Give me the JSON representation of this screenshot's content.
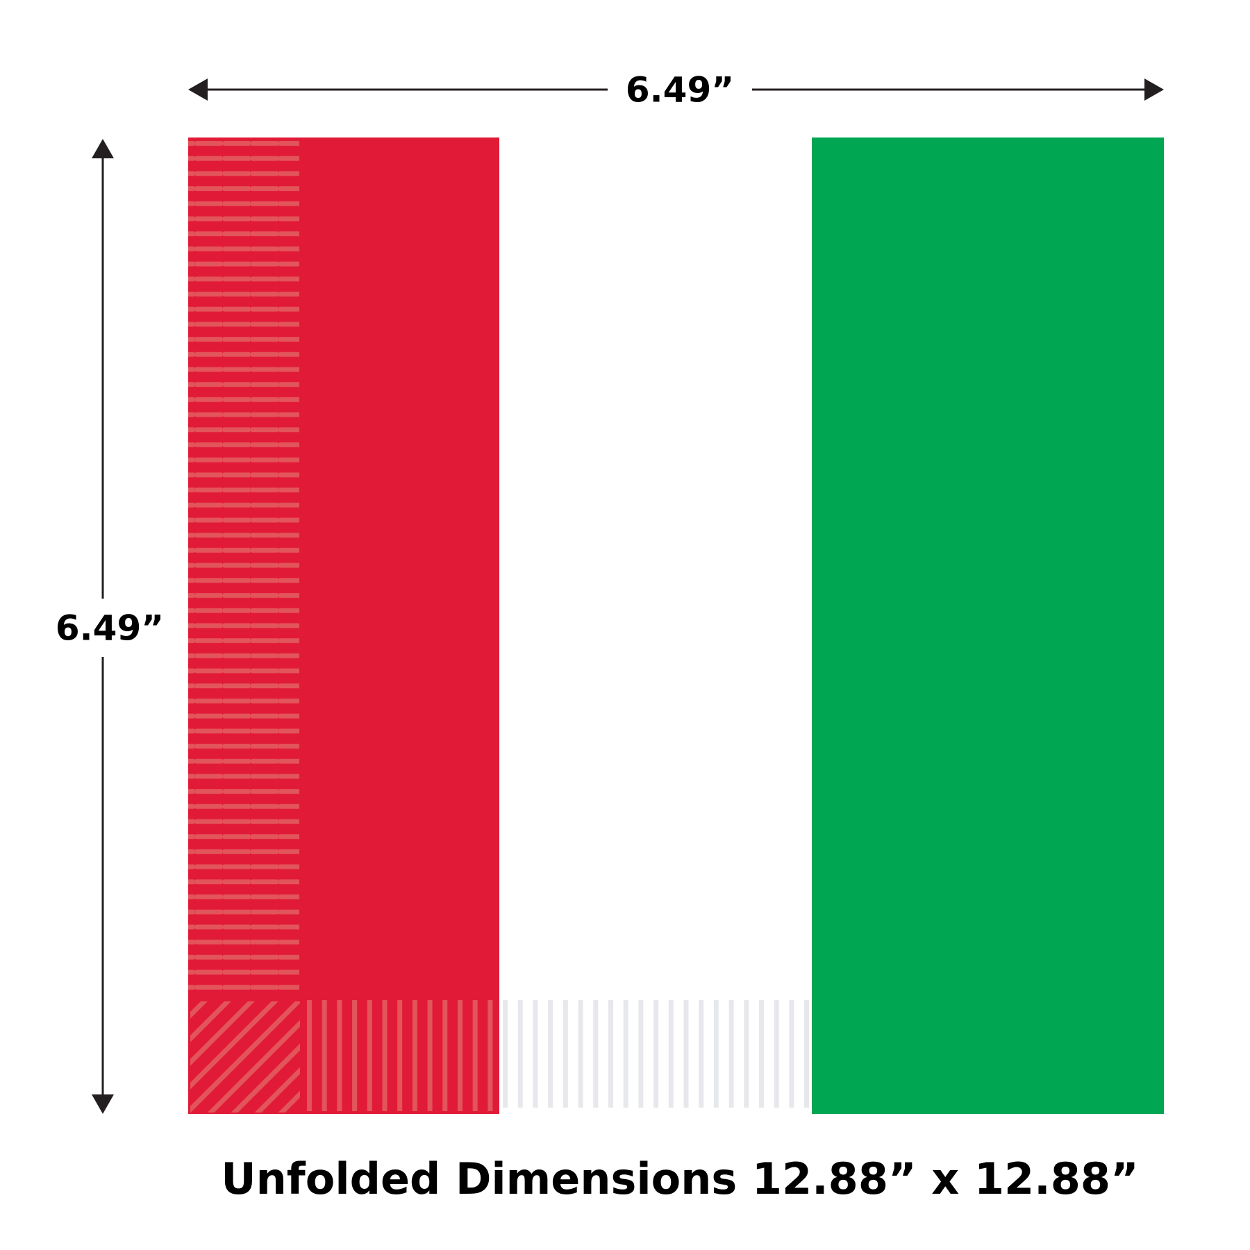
{
  "dimensions": {
    "width": "6.49”",
    "height": "6.49”"
  },
  "caption": "Unfolded Dimensions 12.88” x 12.88”"
}
